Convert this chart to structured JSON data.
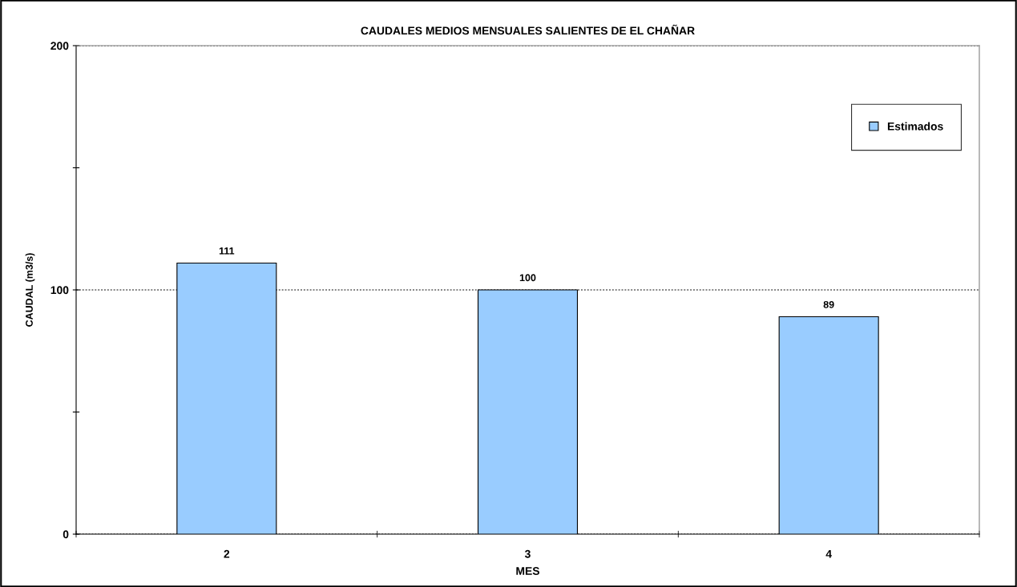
{
  "chart_data": {
    "type": "bar",
    "title": "CAUDALES MEDIOS MENSUALES SALIENTES DE EL CHAÑAR",
    "xlabel": "MES",
    "ylabel": "CAUDAL (m3/s)",
    "categories": [
      "2",
      "3",
      "4"
    ],
    "series": [
      {
        "name": "Estimados",
        "color": "#99ccff",
        "values": [
          111,
          100,
          89
        ]
      }
    ],
    "ylim": [
      0,
      200
    ],
    "yticks": [
      0,
      {
        "value": 50,
        "label": null
      },
      100,
      {
        "value": 150,
        "label": null
      },
      200
    ],
    "grid": "y",
    "legend": "top right",
    "data_labels": true
  }
}
